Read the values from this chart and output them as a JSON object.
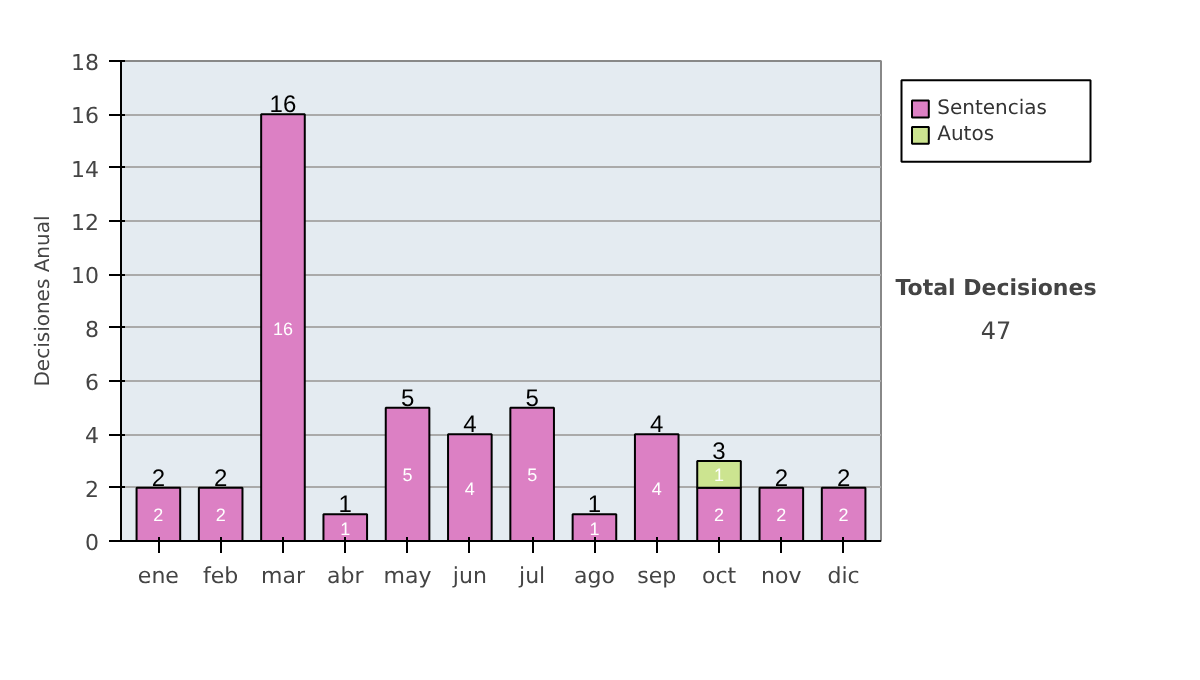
{
  "chart_data": {
    "type": "bar",
    "stacked": true,
    "ylabel": "Decisiones Anual",
    "categories": [
      "ene",
      "feb",
      "mar",
      "abr",
      "may",
      "jun",
      "jul",
      "ago",
      "sep",
      "oct",
      "nov",
      "dic"
    ],
    "series": [
      {
        "name": "Sentencias",
        "color": "#dc80c4",
        "values": [
          2,
          2,
          16,
          1,
          5,
          4,
          5,
          1,
          4,
          2,
          2,
          2
        ]
      },
      {
        "name": "Autos",
        "color": "#cce490",
        "values": [
          null,
          null,
          null,
          null,
          null,
          null,
          null,
          null,
          null,
          1,
          null,
          null
        ]
      }
    ],
    "data_labels": true,
    "totals": [
      "2",
      "2",
      "16",
      "1",
      "5",
      "4",
      "5",
      "1",
      "4",
      "3",
      "2",
      "2"
    ],
    "ylim": [
      0,
      18
    ],
    "yticks": [
      0,
      2,
      4,
      6,
      8,
      10,
      12,
      14,
      16,
      18
    ],
    "grid": "y",
    "legend": "right",
    "annotations": [
      "Total Decisiones",
      "47"
    ]
  }
}
